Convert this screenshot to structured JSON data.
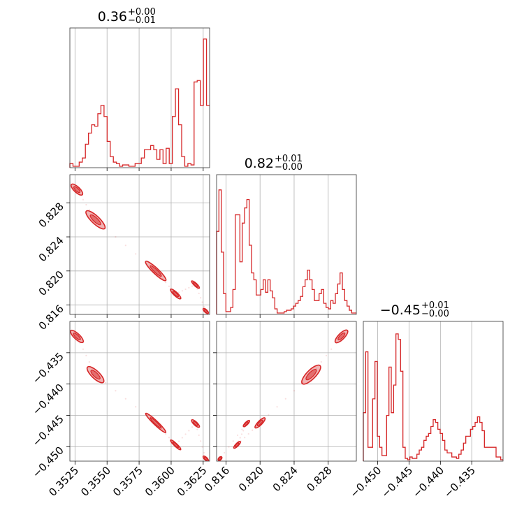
{
  "chart_data": {
    "type": "corner",
    "color": "#d62728",
    "grid": true,
    "parameters": [
      {
        "title": {
          "value": "0.36",
          "plus": "+0.00",
          "minus": "−0.01"
        },
        "range": [
          0.3521,
          0.363
        ],
        "ticks": [
          0.3525,
          0.355,
          0.3575,
          0.36,
          0.3625
        ],
        "tick_labels": [
          "0.3525",
          "0.3550",
          "0.3575",
          "0.3600",
          "0.3625"
        ],
        "hist": [
          0.03,
          0.01,
          0.01,
          0.04,
          0.07,
          0.17,
          0.25,
          0.31,
          0.3,
          0.39,
          0.45,
          0.37,
          0.19,
          0.08,
          0.04,
          0.03,
          0.01,
          0.02,
          0.02,
          0.01,
          0.01,
          0.03,
          0.03,
          0.07,
          0.13,
          0.13,
          0.16,
          0.13,
          0.06,
          0.13,
          0.03,
          0.14,
          0.03,
          0.37,
          0.57,
          0.31,
          0.08,
          0.01,
          0.03,
          0.02,
          0.62,
          0.63,
          0.45,
          0.93,
          0.45
        ]
      },
      {
        "title": {
          "value": "0.82",
          "plus": "+0.01",
          "minus": "−0.00"
        },
        "range": [
          0.8149,
          0.8313
        ],
        "ticks": [
          0.816,
          0.82,
          0.824,
          0.828
        ],
        "tick_labels": [
          "0.816",
          "0.820",
          "0.824",
          "0.828"
        ],
        "hist": [
          0.6,
          0.9,
          0.45,
          0.15,
          0.02,
          0.02,
          0.05,
          0.18,
          0.72,
          0.72,
          0.38,
          0.66,
          0.77,
          0.83,
          0.5,
          0.3,
          0.25,
          0.14,
          0.14,
          0.18,
          0.25,
          0.16,
          0.25,
          0.17,
          0.12,
          0.04,
          0.01,
          0.01,
          0.01,
          0.02,
          0.03,
          0.03,
          0.04,
          0.06,
          0.08,
          0.1,
          0.13,
          0.2,
          0.25,
          0.32,
          0.25,
          0.18,
          0.1,
          0.1,
          0.15,
          0.18,
          0.08,
          0.05,
          0.04,
          0.1,
          0.08,
          0.15,
          0.22,
          0.3,
          0.18,
          0.1,
          0.06,
          0.03,
          0.01,
          0.01
        ]
      },
      {
        "title": {
          "value": "−0.45",
          "plus": "+0.01",
          "minus": "−0.00"
        },
        "range": [
          -0.4523,
          -0.43
        ],
        "ticks": [
          -0.45,
          -0.445,
          -0.44,
          -0.435
        ],
        "tick_labels": [
          "−0.450",
          "−0.445",
          "−0.440",
          "−0.435"
        ],
        "hist": [
          0.35,
          0.79,
          0.1,
          0.1,
          0.45,
          0.72,
          0.18,
          0.1,
          0.04,
          0.04,
          0.33,
          0.68,
          0.35,
          0.55,
          0.92,
          0.88,
          0.65,
          0.1,
          0.02,
          0.01,
          0.03,
          0.02,
          0.02,
          0.05,
          0.08,
          0.1,
          0.15,
          0.18,
          0.2,
          0.25,
          0.3,
          0.28,
          0.23,
          0.2,
          0.15,
          0.08,
          0.06,
          0.06,
          0.03,
          0.03,
          0.02,
          0.05,
          0.08,
          0.13,
          0.18,
          0.18,
          0.23,
          0.25,
          0.28,
          0.32,
          0.28,
          0.22,
          0.1,
          0.1,
          0.1,
          0.1,
          0.1,
          0.03,
          0.03,
          0.01
        ]
      }
    ],
    "modes": [
      {
        "p": [
          0.35265,
          0.82955,
          -0.4324
        ],
        "s": [
          0.0004,
          0.00065,
          0.001
        ]
      },
      {
        "p": [
          0.3541,
          0.826,
          -0.4385
        ],
        "s": [
          0.00055,
          0.0011,
          0.0013
        ]
      },
      {
        "p": [
          0.3588,
          0.82,
          -0.4462
        ],
        "s": [
          0.0008,
          0.0006,
          0.0006
        ]
      },
      {
        "p": [
          0.36035,
          0.8173,
          -0.4497
        ],
        "s": [
          0.0004,
          0.0004,
          0.0004
        ]
      },
      {
        "p": [
          0.3619,
          0.8184,
          -0.4463
        ],
        "s": [
          0.0003,
          0.0003,
          0.0005
        ]
      },
      {
        "p": [
          0.3627,
          0.8153,
          -0.4519
        ],
        "s": [
          0.0002,
          0.0002,
          0.0002
        ]
      }
    ]
  }
}
